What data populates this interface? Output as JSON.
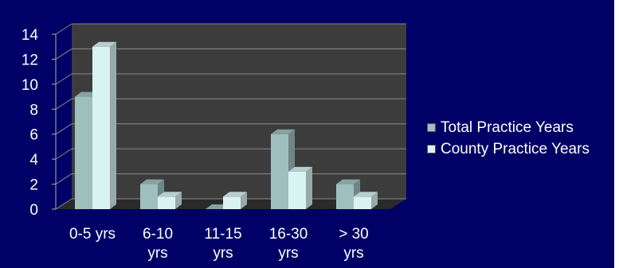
{
  "chart_data": {
    "type": "bar",
    "title": "",
    "xlabel": "",
    "ylabel": "",
    "categories": [
      [
        "0-5 yrs",
        ""
      ],
      [
        "6-10",
        "yrs"
      ],
      [
        "11-15",
        "yrs"
      ],
      [
        "16-30",
        "yrs"
      ],
      [
        "> 30",
        "yrs"
      ]
    ],
    "series": [
      {
        "name": "Total Practice Years",
        "values": [
          9,
          2,
          0,
          6,
          2
        ],
        "color": "#9fbfbf"
      },
      {
        "name": "County Practice Years",
        "values": [
          13,
          1,
          1,
          3,
          1
        ],
        "color": "#d9f2f2"
      }
    ],
    "ylim": [
      0,
      14
    ],
    "yticks": [
      0,
      2,
      4,
      6,
      8,
      10,
      12,
      14
    ],
    "grid": true,
    "legend_position": "right",
    "colors": {
      "background": "#000066",
      "plot_wall": "#3c3c3c",
      "floor": "#2a2a2a",
      "gridline": "#8a8a8a",
      "text": "#ffffff"
    }
  }
}
